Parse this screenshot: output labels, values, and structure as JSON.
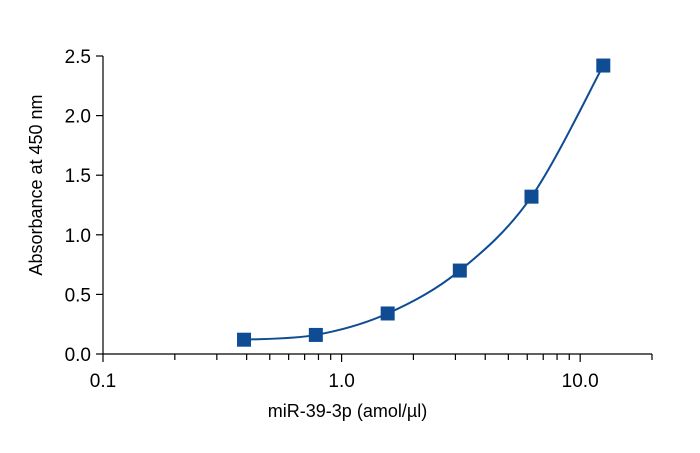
{
  "chart_data": {
    "type": "scatter",
    "xlabel": "miR-39-3p (amol/µl)",
    "ylabel": "Absorbance at 450 nm",
    "x_scale": "log",
    "xlim": [
      0.1,
      20
    ],
    "ylim": [
      0,
      2.5
    ],
    "x_ticks": [
      0.1,
      1.0,
      10.0
    ],
    "x_tick_labels": [
      "0.1",
      "1.0",
      "10.0"
    ],
    "y_ticks": [
      0,
      0.5,
      1.0,
      1.5,
      2.0,
      2.5
    ],
    "y_tick_labels": [
      "0.0",
      "0.5",
      "1.0",
      "1.5",
      "2.0",
      "2.5"
    ],
    "grid": false,
    "legend": false,
    "series": [
      {
        "x": [
          0.39,
          0.78,
          1.56,
          3.13,
          6.25,
          12.5
        ],
        "y": [
          0.12,
          0.16,
          0.34,
          0.7,
          1.32,
          2.42
        ],
        "marker": "square",
        "fit_curve": true,
        "color": "#0f4c94"
      }
    ]
  }
}
